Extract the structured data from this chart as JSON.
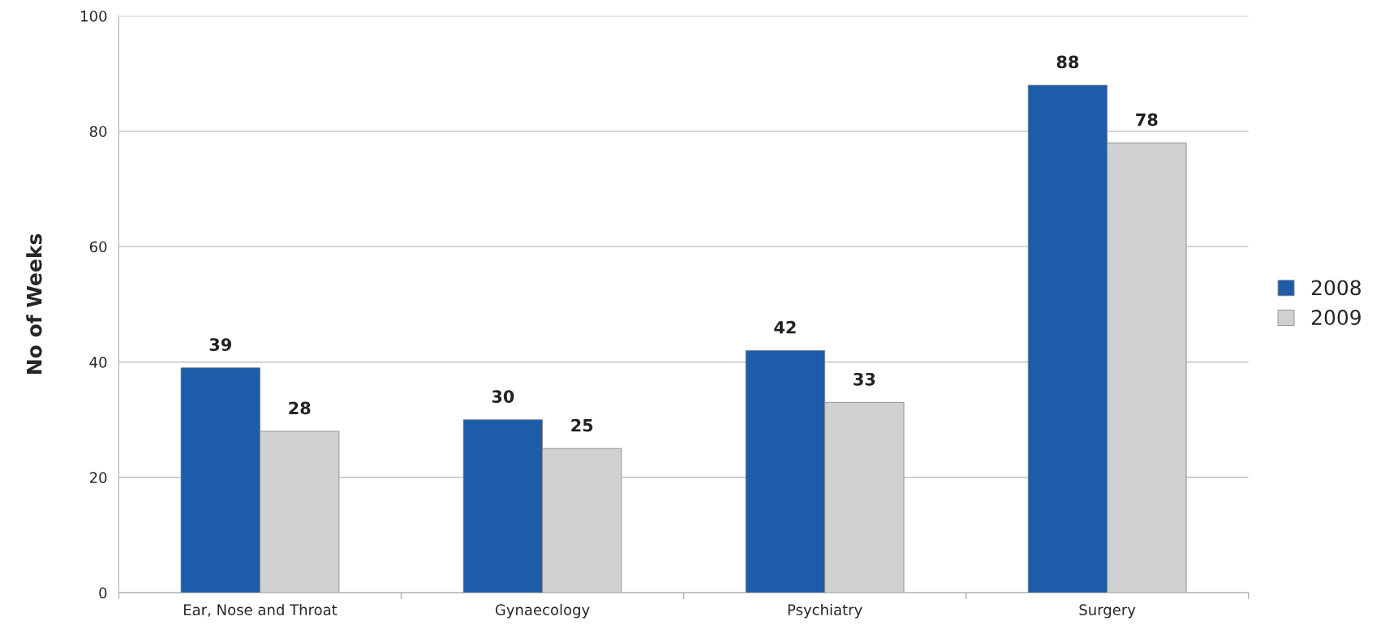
{
  "chart_data": {
    "type": "bar",
    "ylabel": "No of Weeks",
    "categories": [
      "Ear, Nose and Throat",
      "Gynaecology",
      "Psychiatry",
      "Surgery"
    ],
    "series": [
      {
        "name": "2008",
        "color": "#1c5ca8",
        "values": [
          39,
          30,
          42,
          88
        ]
      },
      {
        "name": "2009",
        "color": "#d0d0d0",
        "values": [
          28,
          25,
          33,
          78
        ]
      }
    ],
    "ylim": [
      0,
      100
    ],
    "yticks": [
      0,
      20,
      40,
      60,
      80,
      100
    ],
    "grid": "y",
    "legend": "right",
    "data_labels": true
  }
}
